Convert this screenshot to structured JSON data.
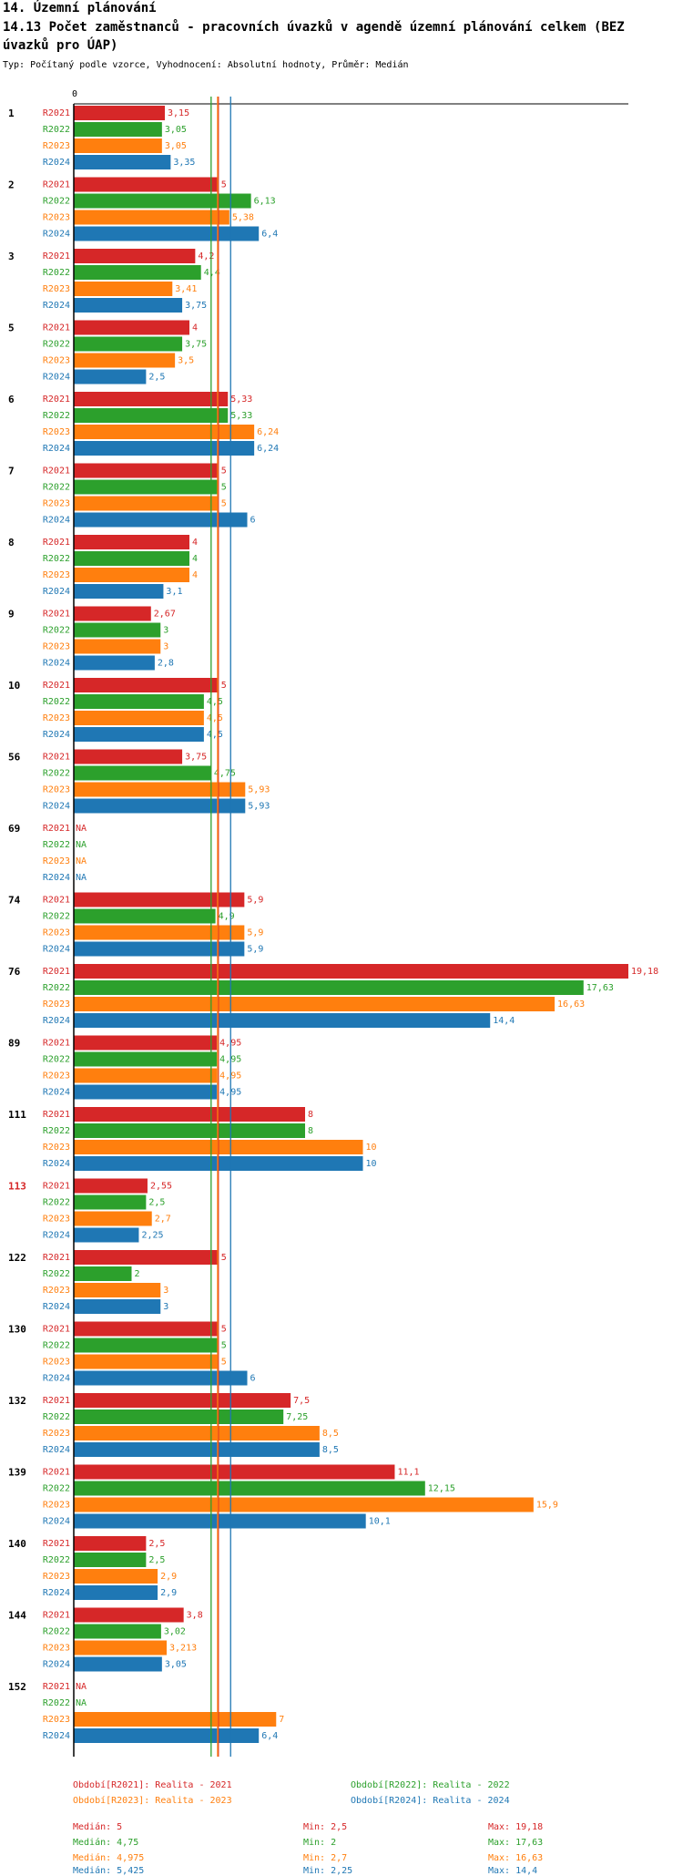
{
  "header": {
    "title": "14. Územní plánování",
    "subtitle": "14.13 Počet zaměstnanců - pracovních úvazků v agendě územní plánování celkem (BEZ úvazků pro ÚAP)",
    "info": "Typ: Počítaný podle vzorce, Vyhodnocení: Absolutní hodnoty, Průměr: Medián"
  },
  "colors": {
    "R2021": "#d62728",
    "R2022": "#2ca02c",
    "R2023": "#ff7f0e",
    "R2024": "#1f77b4",
    "highlight": "#d62728"
  },
  "chart_data": {
    "type": "bar",
    "orientation": "horizontal",
    "axis_zero_label": "0",
    "xlim": [
      0,
      19.18
    ],
    "series_names": [
      "R2021",
      "R2022",
      "R2023",
      "R2024"
    ],
    "highlighted_group": "113",
    "groups": [
      {
        "label": "1",
        "values": [
          3.15,
          3.05,
          3.05,
          3.35
        ],
        "labels": [
          "3,15",
          "3,05",
          "3,05",
          "3,35"
        ]
      },
      {
        "label": "2",
        "values": [
          5,
          6.13,
          5.38,
          6.4
        ],
        "labels": [
          "5",
          "6,13",
          "5,38",
          "6,4"
        ]
      },
      {
        "label": "3",
        "values": [
          4.2,
          4.4,
          3.41,
          3.75
        ],
        "labels": [
          "4,2",
          "4,4",
          "3,41",
          "3,75"
        ]
      },
      {
        "label": "5",
        "values": [
          4,
          3.75,
          3.5,
          2.5
        ],
        "labels": [
          "4",
          "3,75",
          "3,5",
          "2,5"
        ]
      },
      {
        "label": "6",
        "values": [
          5.33,
          5.33,
          6.24,
          6.24
        ],
        "labels": [
          "5,33",
          "5,33",
          "6,24",
          "6,24"
        ]
      },
      {
        "label": "7",
        "values": [
          5,
          5,
          5,
          6
        ],
        "labels": [
          "5",
          "5",
          "5",
          "6"
        ]
      },
      {
        "label": "8",
        "values": [
          4,
          4,
          4,
          3.1
        ],
        "labels": [
          "4",
          "4",
          "4",
          "3,1"
        ]
      },
      {
        "label": "9",
        "values": [
          2.67,
          3,
          3,
          2.8
        ],
        "labels": [
          "2,67",
          "3",
          "3",
          "2,8"
        ]
      },
      {
        "label": "10",
        "values": [
          5,
          4.5,
          4.5,
          4.5
        ],
        "labels": [
          "5",
          "4,5",
          "4,5",
          "4,5"
        ]
      },
      {
        "label": "56",
        "values": [
          3.75,
          4.75,
          5.93,
          5.93
        ],
        "labels": [
          "3,75",
          "4,75",
          "5,93",
          "5,93"
        ]
      },
      {
        "label": "69",
        "values": [
          null,
          null,
          null,
          null
        ],
        "labels": [
          "NA",
          "NA",
          "NA",
          "NA"
        ]
      },
      {
        "label": "74",
        "values": [
          5.9,
          4.9,
          5.9,
          5.9
        ],
        "labels": [
          "5,9",
          "4,9",
          "5,9",
          "5,9"
        ]
      },
      {
        "label": "76",
        "values": [
          19.18,
          17.63,
          16.63,
          14.4
        ],
        "labels": [
          "19,18",
          "17,63",
          "16,63",
          "14,4"
        ]
      },
      {
        "label": "89",
        "values": [
          4.95,
          4.95,
          4.95,
          4.95
        ],
        "labels": [
          "4,95",
          "4,95",
          "4,95",
          "4,95"
        ]
      },
      {
        "label": "111",
        "values": [
          8,
          8,
          10,
          10
        ],
        "labels": [
          "8",
          "8",
          "10",
          "10"
        ]
      },
      {
        "label": "113",
        "values": [
          2.55,
          2.5,
          2.7,
          2.25
        ],
        "labels": [
          "2,55",
          "2,5",
          "2,7",
          "2,25"
        ]
      },
      {
        "label": "122",
        "values": [
          5,
          2,
          3,
          3
        ],
        "labels": [
          "5",
          "2",
          "3",
          "3"
        ]
      },
      {
        "label": "130",
        "values": [
          5,
          5,
          5,
          6
        ],
        "labels": [
          "5",
          "5",
          "5",
          "6"
        ]
      },
      {
        "label": "132",
        "values": [
          7.5,
          7.25,
          8.5,
          8.5
        ],
        "labels": [
          "7,5",
          "7,25",
          "8,5",
          "8,5"
        ]
      },
      {
        "label": "139",
        "values": [
          11.1,
          12.15,
          15.9,
          10.1
        ],
        "labels": [
          "11,1",
          "12,15",
          "15,9",
          "10,1"
        ]
      },
      {
        "label": "140",
        "values": [
          2.5,
          2.5,
          2.9,
          2.9
        ],
        "labels": [
          "2,5",
          "2,5",
          "2,9",
          "2,9"
        ]
      },
      {
        "label": "144",
        "values": [
          3.8,
          3.02,
          3.213,
          3.05
        ],
        "labels": [
          "3,8",
          "3,02",
          "3,213",
          "3,05"
        ]
      },
      {
        "label": "152",
        "values": [
          null,
          null,
          7,
          6.4
        ],
        "labels": [
          "NA",
          "NA",
          "7",
          "6,4"
        ]
      }
    ],
    "medians": [
      5,
      4.75,
      4.975,
      5.425
    ]
  },
  "legend": {
    "periods": [
      "Období[R2021]: Realita - 2021",
      "Období[R2022]: Realita - 2022",
      "Období[R2023]: Realita - 2023",
      "Období[R2024]: Realita - 2024"
    ],
    "stats": [
      {
        "median": "Medián: 5",
        "min": "Min: 2,5",
        "max": "Max: 19,18"
      },
      {
        "median": "Medián: 4,75",
        "min": "Min: 2",
        "max": "Max: 17,63"
      },
      {
        "median": "Medián: 4,975",
        "min": "Min: 2,7",
        "max": "Max: 16,63"
      },
      {
        "median": "Medián: 5,425",
        "min": "Min: 2,25",
        "max": "Max: 14,4"
      }
    ]
  }
}
